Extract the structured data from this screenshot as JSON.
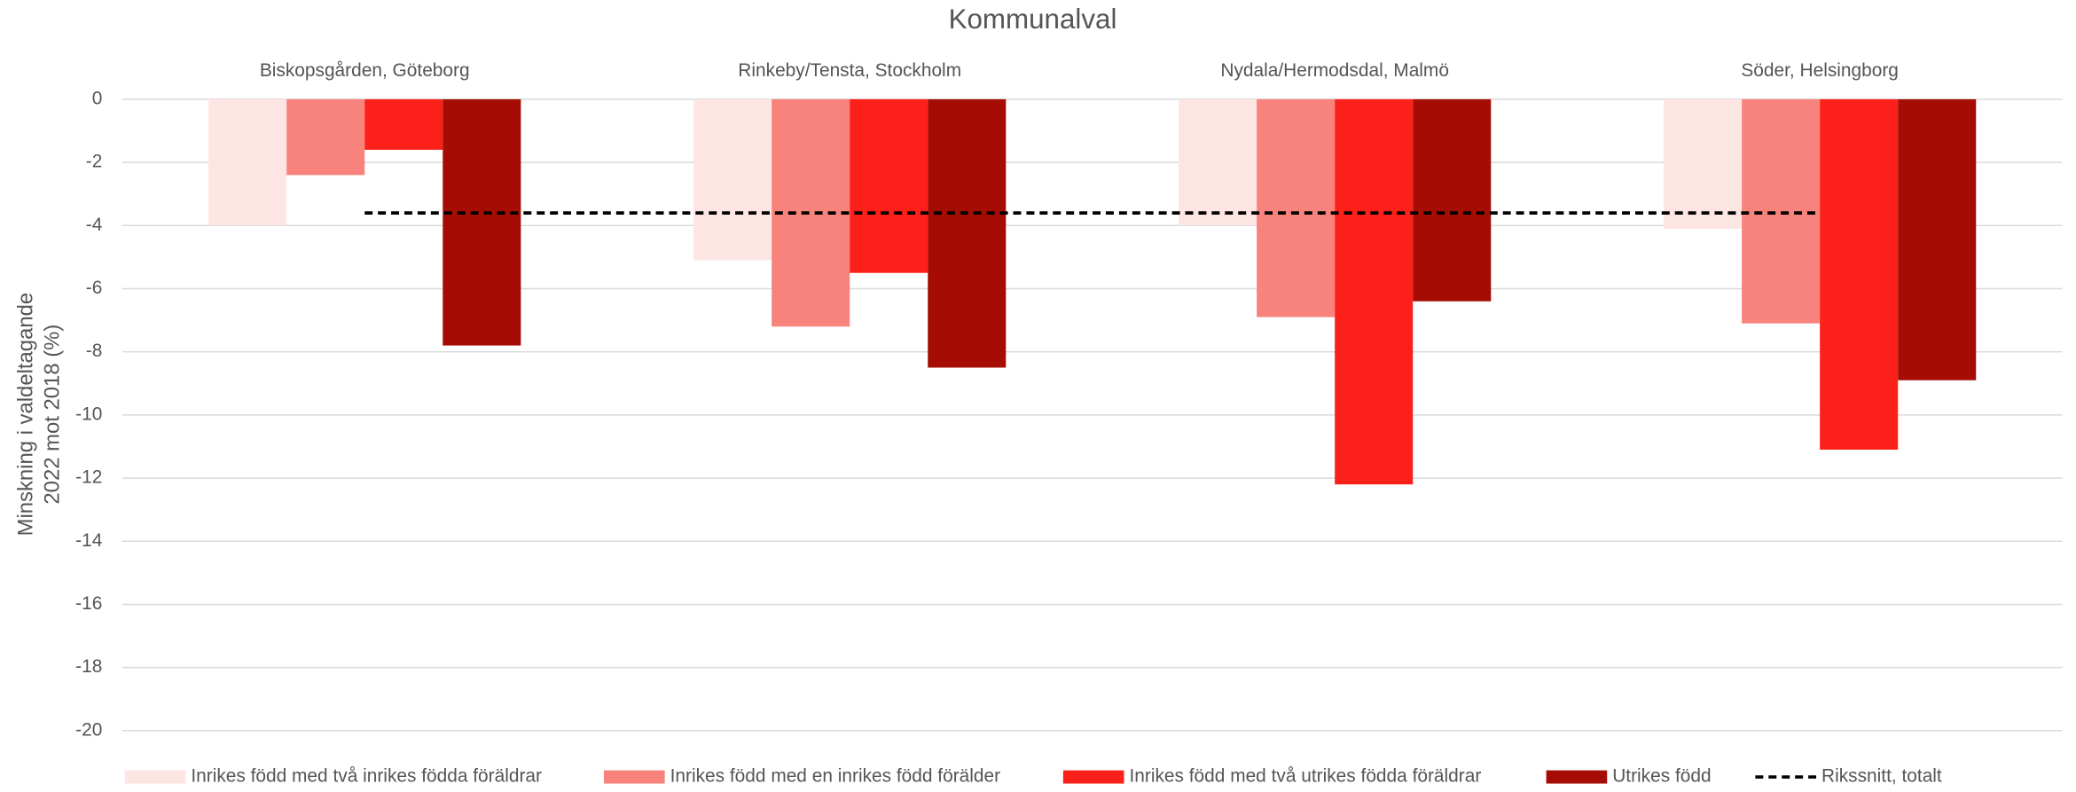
{
  "chart_data": {
    "type": "bar",
    "title": "Kommunalval",
    "ylabel": [
      "Minskning i valdeltagande",
      "2022 mot 2018 (%)"
    ],
    "categories": [
      "Biskopsgården, Göteborg",
      "Rinkeby/Tensta, Stockholm",
      "Nydala/Hermodsdal, Malmö",
      "Söder, Helsingborg"
    ],
    "series": [
      {
        "name": "Inrikes född med två inrikes födda föräldrar",
        "color": "#fde5e4",
        "values": [
          -4.0,
          -5.1,
          -4.0,
          -4.1
        ]
      },
      {
        "name": "Inrikes född med en inrikes född förälder",
        "color": "#f8837c",
        "values": [
          -2.4,
          -7.2,
          -6.9,
          -7.1
        ]
      },
      {
        "name": "Inrikes född med två utrikes födda föräldrar",
        "color": "#fb2019",
        "values": [
          -1.6,
          -5.5,
          -12.2,
          -11.1
        ]
      },
      {
        "name": "Utrikes född",
        "color": "#a50d04",
        "values": [
          -7.8,
          -8.5,
          -6.4,
          -8.9
        ]
      },
      {
        "name": "Rikssnitt, totalt",
        "type": "line",
        "color": "#000000",
        "dashed": true,
        "values": [
          -3.6,
          -3.6,
          -3.6,
          -3.6
        ]
      }
    ],
    "ylim": [
      -20,
      0
    ],
    "yticks": [
      0,
      -2,
      -4,
      -6,
      -8,
      -10,
      -12,
      -14,
      -16,
      -18,
      -20
    ],
    "grid": true,
    "legend": "bottom"
  }
}
